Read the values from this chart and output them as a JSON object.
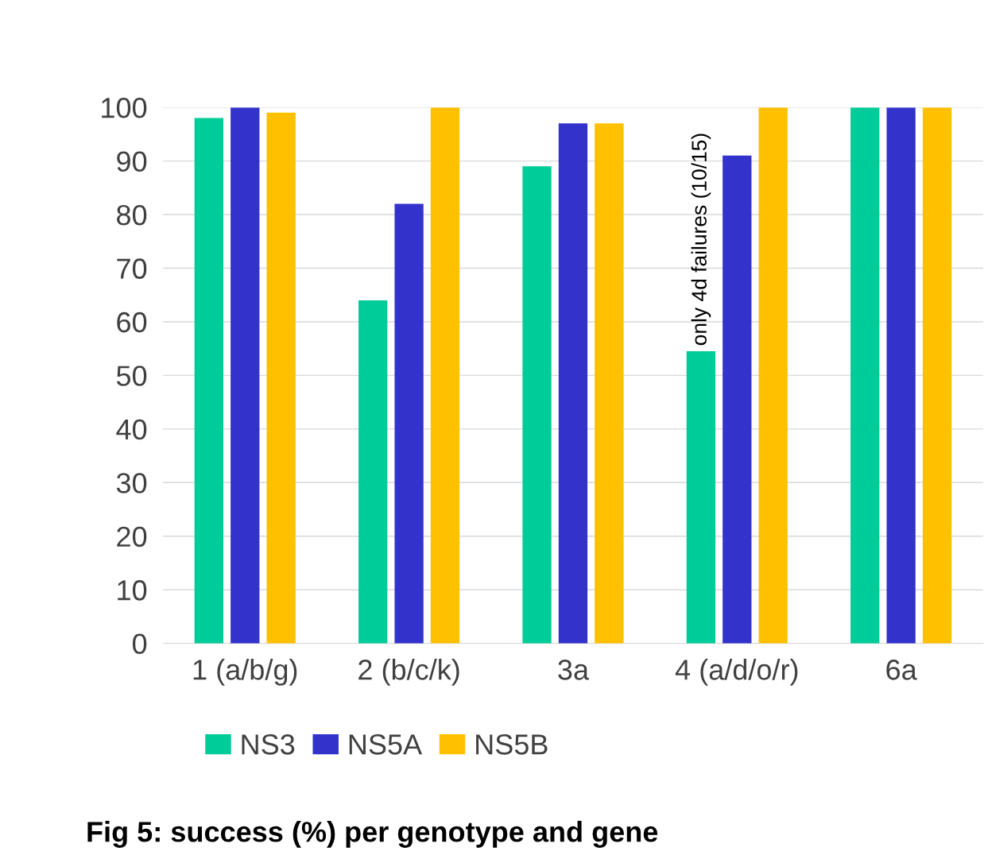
{
  "chart_data": {
    "type": "bar",
    "title": "Fig 5: success (%) per genotype and gene",
    "categories": [
      "1 (a/b/g)",
      "2 (b/c/k)",
      "3a",
      "4 (a/d/o/r)",
      "6a"
    ],
    "series": [
      {
        "name": "NS3",
        "color": "#00cc99",
        "values": [
          98,
          64,
          89,
          54.5,
          100
        ]
      },
      {
        "name": "NS5A",
        "color": "#3333cc",
        "values": [
          100,
          82,
          97,
          91,
          100
        ]
      },
      {
        "name": "NS5B",
        "color": "#ffc000",
        "values": [
          99,
          100,
          97,
          100,
          100
        ]
      }
    ],
    "ylim": [
      0,
      100
    ],
    "yticks": [
      0,
      10,
      20,
      30,
      40,
      50,
      60,
      70,
      80,
      90,
      100
    ],
    "grid": "y",
    "legend": "bottom",
    "annotations": [
      "only 4d failures (10/15)"
    ]
  }
}
